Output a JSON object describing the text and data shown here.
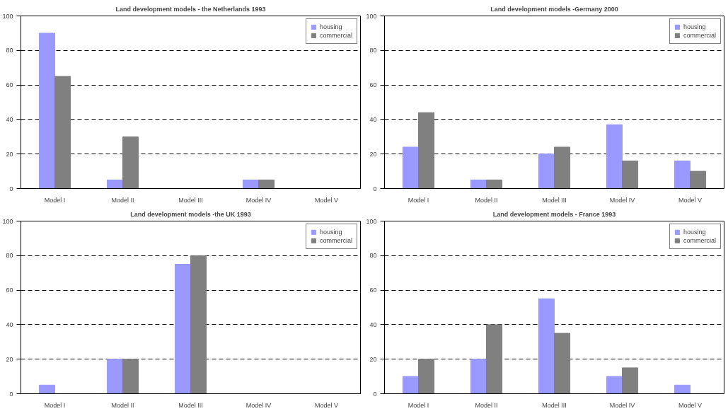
{
  "chart_data": [
    {
      "type": "bar",
      "title": "Land development models - the Netherlands 1993",
      "categories": [
        "Model I",
        "Model II",
        "Model III",
        "Model IV",
        "Model V"
      ],
      "series": [
        {
          "name": "housing",
          "color": "#9999ff",
          "values": [
            90,
            5,
            0,
            5,
            0
          ]
        },
        {
          "name": "commercial",
          "color": "#808080",
          "values": [
            65,
            30,
            0,
            5,
            0
          ]
        }
      ],
      "ylim": [
        0,
        100
      ],
      "yticks": [
        0,
        20,
        40,
        60,
        80,
        100
      ],
      "grid": "y",
      "legend": "top right"
    },
    {
      "type": "bar",
      "title": "Land development models -Germany 2000",
      "categories": [
        "Model I",
        "Model II",
        "Model III",
        "Model IV",
        "Model V"
      ],
      "series": [
        {
          "name": "housing",
          "color": "#9999ff",
          "values": [
            24,
            5,
            20,
            37,
            16
          ]
        },
        {
          "name": "commercial",
          "color": "#808080",
          "values": [
            44,
            5,
            24,
            16,
            10
          ]
        }
      ],
      "ylim": [
        0,
        100
      ],
      "yticks": [
        0,
        20,
        40,
        60,
        80,
        100
      ],
      "grid": "y",
      "legend": "top right"
    },
    {
      "type": "bar",
      "title": "Land development models -the UK 1993",
      "categories": [
        "Model I",
        "Model II",
        "Model III",
        "Model IV",
        "Model V"
      ],
      "series": [
        {
          "name": "housing",
          "color": "#9999ff",
          "values": [
            5,
            20,
            75,
            0,
            0
          ]
        },
        {
          "name": "commercial",
          "color": "#808080",
          "values": [
            0,
            20,
            80,
            0,
            0
          ]
        }
      ],
      "ylim": [
        0,
        100
      ],
      "yticks": [
        0,
        20,
        40,
        60,
        80,
        100
      ],
      "grid": "y",
      "legend": "top right"
    },
    {
      "type": "bar",
      "title": "Land development models - France 1993",
      "categories": [
        "Model I",
        "Model II",
        "Model III",
        "Model IV",
        "Model V"
      ],
      "series": [
        {
          "name": "housing",
          "color": "#9999ff",
          "values": [
            10,
            20,
            55,
            10,
            5
          ]
        },
        {
          "name": "commercial",
          "color": "#808080",
          "values": [
            20,
            40,
            35,
            15,
            0
          ]
        }
      ],
      "ylim": [
        0,
        100
      ],
      "yticks": [
        0,
        20,
        40,
        60,
        80,
        100
      ],
      "grid": "y",
      "legend": "top right"
    }
  ]
}
